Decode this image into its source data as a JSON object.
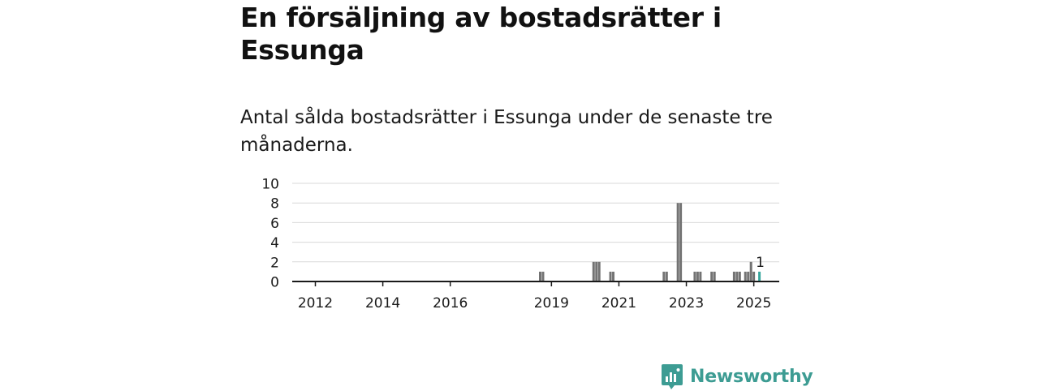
{
  "title": "En försäljning av bostadsrätter i Essunga",
  "subtitle": "Antal sålda bostadsrätter i Essunga under de senaste tre månaderna.",
  "brand": {
    "name": "Newsworthy",
    "color": "#3d9c93",
    "icon": "newsworthy-logo-icon"
  },
  "colors": {
    "bar": "#737373",
    "highlight": "#37a79d",
    "grid": "#d9d9d9",
    "axis": "#1a1a1a"
  },
  "chart_data": {
    "type": "bar",
    "x_type": "month",
    "ylim": [
      0,
      10
    ],
    "y_ticks": [
      "0",
      "2",
      "4",
      "6",
      "8",
      "10"
    ],
    "x_ticks": [
      "2012",
      "2014",
      "2016",
      "2019",
      "2021",
      "2023",
      "2025"
    ],
    "grid": true,
    "annotation": {
      "month": "2025-03",
      "label": "1"
    },
    "series": [
      {
        "values": [
          {
            "month": "2018-09",
            "value": 1
          },
          {
            "month": "2018-10",
            "value": 1
          },
          {
            "month": "2020-04",
            "value": 2
          },
          {
            "month": "2020-05",
            "value": 2
          },
          {
            "month": "2020-06",
            "value": 2
          },
          {
            "month": "2020-10",
            "value": 1
          },
          {
            "month": "2020-11",
            "value": 1
          },
          {
            "month": "2022-05",
            "value": 1
          },
          {
            "month": "2022-06",
            "value": 1
          },
          {
            "month": "2022-10",
            "value": 8
          },
          {
            "month": "2022-11",
            "value": 8
          },
          {
            "month": "2023-04",
            "value": 1
          },
          {
            "month": "2023-05",
            "value": 1
          },
          {
            "month": "2023-06",
            "value": 1
          },
          {
            "month": "2023-10",
            "value": 1
          },
          {
            "month": "2023-11",
            "value": 1
          },
          {
            "month": "2024-06",
            "value": 1
          },
          {
            "month": "2024-07",
            "value": 1
          },
          {
            "month": "2024-08",
            "value": 1
          },
          {
            "month": "2024-10",
            "value": 1
          },
          {
            "month": "2024-11",
            "value": 1
          },
          {
            "month": "2024-12",
            "value": 2
          },
          {
            "month": "2025-01",
            "value": 1
          },
          {
            "month": "2025-03",
            "value": 1,
            "highlight": true
          }
        ]
      }
    ]
  }
}
